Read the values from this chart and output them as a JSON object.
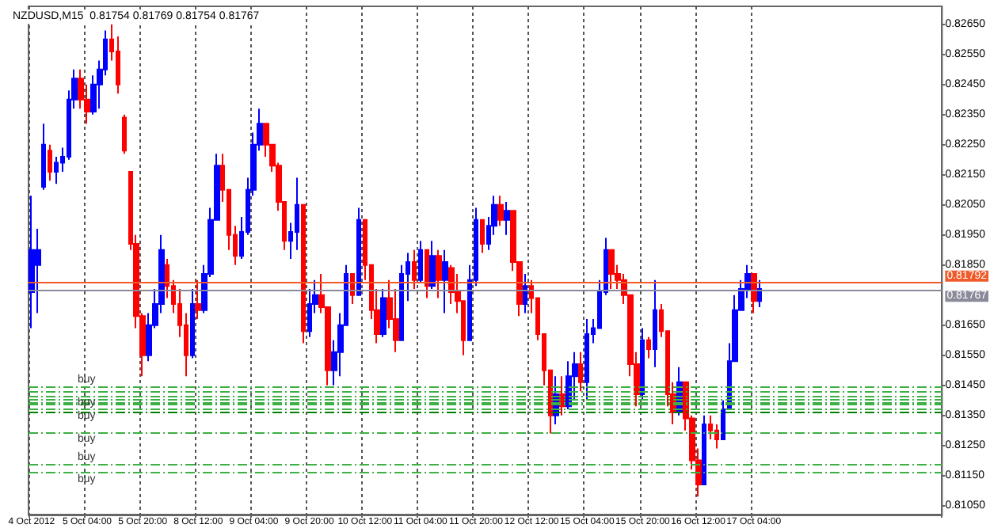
{
  "chart_data": {
    "type": "candlestick",
    "title": "NZDUSD,M15  0.81754 0.81769 0.81754 0.81767",
    "categories": [
      "4 Oct 2012",
      null,
      null,
      null,
      null,
      null,
      null,
      null,
      null,
      "5 Oct 04:00",
      null,
      null,
      null,
      null,
      null,
      null,
      null,
      null,
      "5 Oct 20:00",
      null,
      null,
      null,
      null,
      null,
      null,
      null,
      null,
      "8 Oct 12:00",
      null,
      null,
      null,
      null,
      null,
      null,
      null,
      null,
      "9 Oct 04:00",
      null,
      null,
      null,
      null,
      null,
      null,
      null,
      null,
      "9 Oct 20:00",
      null,
      null,
      null,
      null,
      null,
      null,
      null,
      null,
      "10 Oct 12:00",
      null,
      null,
      null,
      null,
      null,
      null,
      null,
      null,
      "11 Oct 04:00",
      null,
      null,
      null,
      null,
      null,
      null,
      null,
      null,
      "11 Oct 20:00",
      null,
      null,
      null,
      null,
      null,
      null,
      null,
      null,
      "12 Oct 12:00",
      null,
      null,
      null,
      null,
      null,
      null,
      null,
      null,
      "15 Oct 04:00",
      null,
      null,
      null,
      null,
      null,
      null,
      null,
      null,
      "15 Oct 20:00",
      null,
      null,
      null,
      null,
      null,
      null,
      null,
      null,
      "16 Oct 12:00",
      null,
      null,
      null,
      null,
      null,
      null,
      null,
      null,
      "17 Oct 04:00",
      null,
      null,
      null,
      null,
      null,
      null,
      null,
      null,
      null,
      null,
      null,
      null,
      null,
      null,
      null,
      null,
      null,
      null,
      null,
      null,
      null,
      null,
      null,
      null,
      null,
      null,
      null,
      null,
      null,
      null
    ],
    "ohlc": [
      [
        0.8176,
        0.8208,
        0.8164,
        0.819
      ],
      [
        0.8185,
        0.8197,
        0.8169,
        0.819
      ],
      [
        0.8211,
        0.8232,
        0.821,
        0.8225
      ],
      [
        0.8223,
        0.8225,
        0.8213,
        0.8216
      ],
      [
        0.8216,
        0.8221,
        0.8212,
        0.8219
      ],
      [
        0.8219,
        0.8224,
        0.8216,
        0.8221
      ],
      [
        0.8221,
        0.8243,
        0.822,
        0.824
      ],
      [
        0.824,
        0.825,
        0.8237,
        0.8247
      ],
      [
        0.8247,
        0.825,
        0.8237,
        0.824
      ],
      [
        0.824,
        0.8245,
        0.8232,
        0.8236
      ],
      [
        0.8236,
        0.8248,
        0.8235,
        0.8245
      ],
      [
        0.8245,
        0.8253,
        0.8237,
        0.825
      ],
      [
        0.825,
        0.8263,
        0.8248,
        0.826
      ],
      [
        0.826,
        0.8265,
        0.8253,
        0.8256
      ],
      [
        0.8256,
        0.8261,
        0.8242,
        0.8245
      ],
      [
        0.8234,
        0.8235,
        0.8222,
        0.8223
      ],
      [
        0.8216,
        0.8216,
        0.819,
        0.8192
      ],
      [
        0.8192,
        0.8195,
        0.8164,
        0.8168
      ],
      [
        0.8168,
        0.8169,
        0.8148,
        0.8155
      ],
      [
        0.8155,
        0.8169,
        0.8153,
        0.8165
      ],
      [
        0.8165,
        0.8177,
        0.8164,
        0.8172
      ],
      [
        0.8172,
        0.8195,
        0.8169,
        0.819
      ],
      [
        0.8185,
        0.8187,
        0.8174,
        0.8178
      ],
      [
        0.8178,
        0.818,
        0.8169,
        0.8172
      ],
      [
        0.8172,
        0.8177,
        0.8161,
        0.8165
      ],
      [
        0.8165,
        0.8169,
        0.8148,
        0.8155
      ],
      [
        0.8155,
        0.8177,
        0.8154,
        0.8172
      ],
      [
        0.8172,
        0.818,
        0.8167,
        0.817
      ],
      [
        0.817,
        0.8185,
        0.8169,
        0.8182
      ],
      [
        0.8182,
        0.8204,
        0.8181,
        0.82
      ],
      [
        0.82,
        0.8222,
        0.82,
        0.8218
      ],
      [
        0.8218,
        0.8222,
        0.8206,
        0.821
      ],
      [
        0.821,
        0.821,
        0.819,
        0.8195
      ],
      [
        0.8195,
        0.8198,
        0.8185,
        0.8188
      ],
      [
        0.8188,
        0.8201,
        0.8187,
        0.8196
      ],
      [
        0.8196,
        0.8214,
        0.8195,
        0.821
      ],
      [
        0.821,
        0.8229,
        0.8208,
        0.8225
      ],
      [
        0.8225,
        0.8237,
        0.8223,
        0.8232
      ],
      [
        0.8232,
        0.8232,
        0.8221,
        0.8225
      ],
      [
        0.8225,
        0.8225,
        0.8216,
        0.8218
      ],
      [
        0.8218,
        0.8219,
        0.8203,
        0.8206
      ],
      [
        0.8206,
        0.8206,
        0.819,
        0.8193
      ],
      [
        0.8193,
        0.8199,
        0.8187,
        0.8196
      ],
      [
        0.8196,
        0.8214,
        0.819,
        0.8205
      ],
      [
        0.8205,
        0.8205,
        0.8159,
        0.8163
      ],
      [
        0.8163,
        0.8177,
        0.8161,
        0.8172
      ],
      [
        0.8172,
        0.818,
        0.8169,
        0.8175
      ],
      [
        0.8175,
        0.8182,
        0.8169,
        0.8171
      ],
      [
        0.8171,
        0.8171,
        0.8145,
        0.815
      ],
      [
        0.815,
        0.816,
        0.8145,
        0.8156
      ],
      [
        0.8156,
        0.8169,
        0.8148,
        0.8165
      ],
      [
        0.8165,
        0.8185,
        0.8165,
        0.8182
      ],
      [
        0.8182,
        0.8182,
        0.8172,
        0.8175
      ],
      [
        0.8175,
        0.8204,
        0.8175,
        0.82
      ],
      [
        0.82,
        0.82,
        0.818,
        0.8185
      ],
      [
        0.8185,
        0.8185,
        0.8167,
        0.817
      ],
      [
        0.817,
        0.8177,
        0.8159,
        0.8162
      ],
      [
        0.8162,
        0.8177,
        0.8161,
        0.8174
      ],
      [
        0.8174,
        0.818,
        0.8164,
        0.8167
      ],
      [
        0.8167,
        0.8177,
        0.8156,
        0.816
      ],
      [
        0.816,
        0.8185,
        0.816,
        0.8182
      ],
      [
        0.8182,
        0.8189,
        0.8173,
        0.8186
      ],
      [
        0.8186,
        0.819,
        0.8177,
        0.818
      ],
      [
        0.818,
        0.8193,
        0.8179,
        0.819
      ],
      [
        0.819,
        0.819,
        0.8174,
        0.8178
      ],
      [
        0.8178,
        0.8193,
        0.8177,
        0.8188
      ],
      [
        0.8188,
        0.819,
        0.8174,
        0.818
      ],
      [
        0.818,
        0.819,
        0.8169,
        0.8186
      ],
      [
        0.8184,
        0.8185,
        0.8172,
        0.8176
      ],
      [
        0.8176,
        0.8182,
        0.8169,
        0.8173
      ],
      [
        0.8173,
        0.8173,
        0.8155,
        0.816
      ],
      [
        0.816,
        0.8185,
        0.816,
        0.818
      ],
      [
        0.818,
        0.8204,
        0.8178,
        0.82
      ],
      [
        0.82,
        0.82,
        0.8189,
        0.8192
      ],
      [
        0.8192,
        0.8201,
        0.819,
        0.8198
      ],
      [
        0.8198,
        0.8208,
        0.8195,
        0.8205
      ],
      [
        0.8205,
        0.8208,
        0.8198,
        0.82
      ],
      [
        0.82,
        0.8206,
        0.8195,
        0.8203
      ],
      [
        0.8203,
        0.8203,
        0.8183,
        0.8186
      ],
      [
        0.8186,
        0.8186,
        0.8168,
        0.8172
      ],
      [
        0.8172,
        0.8182,
        0.8169,
        0.8178
      ],
      [
        0.8178,
        0.818,
        0.8169,
        0.8174
      ],
      [
        0.8174,
        0.8174,
        0.816,
        0.8162
      ],
      [
        0.8162,
        0.8162,
        0.8145,
        0.815
      ],
      [
        0.815,
        0.815,
        0.8129,
        0.8135
      ],
      [
        0.8135,
        0.8148,
        0.8132,
        0.8142
      ],
      [
        0.8142,
        0.8148,
        0.8135,
        0.8138
      ],
      [
        0.8138,
        0.8153,
        0.8137,
        0.8148
      ],
      [
        0.8148,
        0.8156,
        0.814,
        0.8152
      ],
      [
        0.8152,
        0.8156,
        0.8143,
        0.8146
      ],
      [
        0.8146,
        0.8167,
        0.814,
        0.8162
      ],
      [
        0.8162,
        0.8167,
        0.8159,
        0.8164
      ],
      [
        0.8164,
        0.818,
        0.8164,
        0.8176
      ],
      [
        0.8176,
        0.8194,
        0.8175,
        0.819
      ],
      [
        0.819,
        0.819,
        0.8177,
        0.8182
      ],
      [
        0.8182,
        0.8185,
        0.8177,
        0.818
      ],
      [
        0.818,
        0.8182,
        0.8172,
        0.8175
      ],
      [
        0.8175,
        0.8175,
        0.8148,
        0.8152
      ],
      [
        0.8152,
        0.8156,
        0.8138,
        0.8142
      ],
      [
        0.8142,
        0.8164,
        0.814,
        0.816
      ],
      [
        0.816,
        0.8161,
        0.8154,
        0.8157
      ],
      [
        0.8157,
        0.818,
        0.8151,
        0.817
      ],
      [
        0.817,
        0.8172,
        0.8161,
        0.8163
      ],
      [
        0.8163,
        0.8163,
        0.8138,
        0.8142
      ],
      [
        0.8142,
        0.8146,
        0.8132,
        0.8136
      ],
      [
        0.8136,
        0.8151,
        0.8135,
        0.8146
      ],
      [
        0.8146,
        0.8146,
        0.813,
        0.8134
      ],
      [
        0.8134,
        0.8135,
        0.8117,
        0.812
      ],
      [
        0.812,
        0.8124,
        0.8108,
        0.8112
      ],
      [
        0.8112,
        0.8135,
        0.8112,
        0.8132
      ],
      [
        0.8132,
        0.8135,
        0.8127,
        0.813
      ],
      [
        0.813,
        0.8132,
        0.8124,
        0.8127
      ],
      [
        0.8127,
        0.814,
        0.8127,
        0.8137
      ],
      [
        0.8137,
        0.8159,
        0.8137,
        0.8153
      ],
      [
        0.8153,
        0.8175,
        0.8153,
        0.817
      ],
      [
        0.817,
        0.818,
        0.817,
        0.8177
      ],
      [
        0.8177,
        0.8185,
        0.8174,
        0.8182
      ],
      [
        0.8182,
        0.8182,
        0.8169,
        0.8173
      ],
      [
        0.8173,
        0.818,
        0.8171,
        0.8177
      ],
      null,
      null,
      null,
      null,
      null,
      null,
      null,
      null,
      null,
      null,
      null,
      null,
      null,
      null,
      null,
      null,
      null,
      null,
      null,
      null,
      null,
      null,
      null,
      null,
      null,
      null,
      null,
      null,
      null
    ],
    "colors": [
      "#0000ff",
      "#0000ff",
      "#0000ff",
      "#ff0000",
      "#0000ff",
      "#0000ff",
      "#0000ff",
      "#0000ff",
      "#ff0000",
      "#ff0000",
      "#0000ff",
      "#0000ff",
      "#0000ff",
      "#ff0000",
      "#ff0000",
      "#ff0000",
      "#ff0000",
      "#ff0000",
      "#ff0000",
      "#0000ff",
      "#0000ff",
      "#0000ff",
      "#ff0000",
      "#ff0000",
      "#ff0000",
      "#ff0000",
      "#0000ff",
      "#ff0000",
      "#0000ff",
      "#0000ff",
      "#0000ff",
      "#ff0000",
      "#ff0000",
      "#ff0000",
      "#0000ff",
      "#0000ff",
      "#0000ff",
      "#0000ff",
      "#ff0000",
      "#ff0000",
      "#ff0000",
      "#ff0000",
      "#0000ff",
      "#0000ff",
      "#ff0000",
      "#0000ff",
      "#0000ff",
      "#ff0000",
      "#ff0000",
      "#0000ff",
      "#0000ff",
      "#0000ff",
      "#ff0000",
      "#0000ff",
      "#ff0000",
      "#ff0000",
      "#ff0000",
      "#0000ff",
      "#ff0000",
      "#ff0000",
      "#0000ff",
      "#0000ff",
      "#ff0000",
      "#0000ff",
      "#ff0000",
      "#0000ff",
      "#ff0000",
      "#0000ff",
      "#ff0000",
      "#ff0000",
      "#ff0000",
      "#0000ff",
      "#0000ff",
      "#ff0000",
      "#0000ff",
      "#0000ff",
      "#ff0000",
      "#0000ff",
      "#ff0000",
      "#ff0000",
      "#0000ff",
      "#ff0000",
      "#ff0000",
      "#ff0000",
      "#ff0000",
      "#0000ff",
      "#ff0000",
      "#0000ff",
      "#0000ff",
      "#ff0000",
      "#0000ff",
      "#0000ff",
      "#0000ff",
      "#0000ff",
      "#ff0000",
      "#ff0000",
      "#ff0000",
      "#ff0000",
      "#ff0000",
      "#0000ff",
      "#ff0000",
      "#0000ff",
      "#ff0000",
      "#ff0000",
      "#ff0000",
      "#0000ff",
      "#ff0000",
      "#ff0000",
      "#ff0000",
      "#0000ff",
      "#ff0000",
      "#ff0000",
      "#0000ff",
      "#0000ff",
      "#0000ff",
      "#0000ff",
      "#0000ff",
      "#ff0000",
      "#0000ff",
      null,
      null,
      null,
      null,
      null,
      null,
      null,
      null,
      null,
      null,
      null,
      null,
      null,
      null,
      null,
      null,
      null,
      null,
      null,
      null,
      null,
      null,
      null,
      null,
      null,
      null,
      null,
      null,
      null
    ],
    "ylim": [
      0.8102,
      0.8271
    ],
    "yticks": [
      {
        "value": 0.8105,
        "label": "0.81050"
      },
      {
        "value": 0.8115,
        "label": "0.81150"
      },
      {
        "value": 0.8125,
        "label": "0.81250"
      },
      {
        "value": 0.8135,
        "label": "0.81350"
      },
      {
        "value": 0.8145,
        "label": "0.81450"
      },
      {
        "value": 0.8155,
        "label": "0.81550"
      },
      {
        "value": 0.8165,
        "label": "0.81650"
      },
      {
        "value": 0.8185,
        "label": "0.81850"
      },
      {
        "value": 0.8195,
        "label": "0.81950"
      },
      {
        "value": 0.8205,
        "label": "0.82050"
      },
      {
        "value": 0.8215,
        "label": "0.82150"
      },
      {
        "value": 0.8225,
        "label": "0.82250"
      },
      {
        "value": 0.8235,
        "label": "0.82350"
      },
      {
        "value": 0.8245,
        "label": "0.82450"
      },
      {
        "value": 0.8255,
        "label": "0.82550"
      },
      {
        "value": 0.8265,
        "label": "0.82650"
      }
    ],
    "grid": "x",
    "ref_lines": [
      {
        "axis": "y",
        "value": 0.81792,
        "label": "0.81792",
        "color": "#f05a28",
        "line_style": "solid"
      },
      {
        "axis": "y",
        "value": 0.81767,
        "label": "0.81767",
        "color": "#8a8a9a",
        "line_style": "solid"
      },
      {
        "axis": "y",
        "value": 0.81445,
        "label": "buy",
        "color": "#3cb043",
        "line_style": "dashed"
      },
      {
        "axis": "y",
        "value": 0.8143,
        "label": null,
        "color": "#3cb043",
        "line_style": "dashed"
      },
      {
        "axis": "y",
        "value": 0.81415,
        "label": "buy",
        "color": "#3cb043",
        "line_style": "dashed"
      },
      {
        "axis": "y",
        "value": 0.81405,
        "label": null,
        "color": "#3cb043",
        "line_style": "dashed"
      },
      {
        "axis": "y",
        "value": 0.81395,
        "label": null,
        "color": "#3cb043",
        "line_style": "dashed"
      },
      {
        "axis": "y",
        "value": 0.81385,
        "label": null,
        "color": "#3cb043",
        "line_style": "dashed"
      },
      {
        "axis": "y",
        "value": 0.8137,
        "label": "buy",
        "color": "#3cb043",
        "line_style": "dashed"
      },
      {
        "axis": "y",
        "value": 0.8136,
        "label": null,
        "color": "#008000",
        "line_style": "dashed"
      },
      {
        "axis": "y",
        "value": 0.81295,
        "label": "buy",
        "color": "#3cb043",
        "line_style": "dashed"
      },
      {
        "axis": "y",
        "value": 0.81185,
        "label": "buy",
        "color": "#3cb043",
        "line_style": "dashed"
      },
      {
        "axis": "y",
        "value": 0.8116,
        "label": "buy",
        "color": "#3cb043",
        "line_style": "dashed"
      }
    ]
  }
}
